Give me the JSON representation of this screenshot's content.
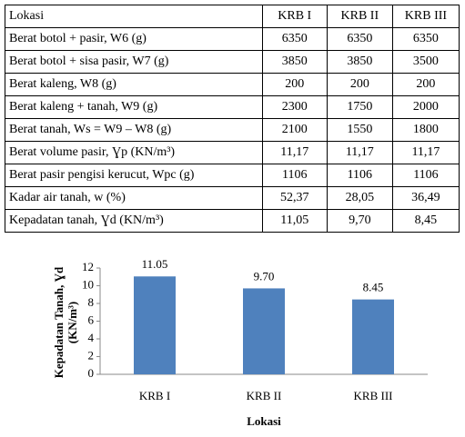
{
  "table": {
    "header": [
      "Lokasi",
      "KRB I",
      "KRB II",
      "KRB III"
    ],
    "rows": [
      [
        "Berat botol + pasir, W6 (g)",
        "6350",
        "6350",
        "6350"
      ],
      [
        "Berat botol + sisa pasir, W7 (g)",
        "3850",
        "3850",
        "3500"
      ],
      [
        "Berat kaleng, W8 (g)",
        "200",
        "200",
        "200"
      ],
      [
        "Berat kaleng + tanah, W9 (g)",
        "2300",
        "1750",
        "2000"
      ],
      [
        "Berat tanah, Ws = W9 – W8 (g)",
        "2100",
        "1550",
        "1800"
      ],
      [
        "Berat volume pasir, Ɣp (KN/m³)",
        "11,17",
        "11,17",
        "11,17"
      ],
      [
        "Berat pasir pengisi kerucut, Wpc (g)",
        "1106",
        "1106",
        "1106"
      ],
      [
        "Kadar air tanah, w (%)",
        "52,37",
        "28,05",
        "36,49"
      ],
      [
        "Kepadatan tanah, Ɣd (KN/m³)",
        "11,05",
        "9,70",
        "8,45"
      ]
    ]
  },
  "chart_data": {
    "type": "bar",
    "categories": [
      "KRB I",
      "KRB II",
      "KRB III"
    ],
    "values": [
      11.05,
      9.7,
      8.45
    ],
    "value_labels": [
      "11.05",
      "9.70",
      "8.45"
    ],
    "color": "#4f81bd",
    "ylim": [
      0,
      12
    ],
    "yticks": [
      0,
      2,
      4,
      6,
      8,
      10,
      12
    ],
    "y_label": [
      "Kepadatan Tanah, Ɣd",
      "(KN/m³)"
    ],
    "x_label": "Lokasi"
  }
}
